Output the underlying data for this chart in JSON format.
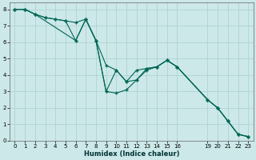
{
  "xlabel": "Humidex (Indice chaleur)",
  "bg_color": "#cce8e8",
  "grid_color": "#aacfcf",
  "line_color": "#006655",
  "xlim": [
    -0.5,
    23.5
  ],
  "ylim": [
    0,
    8.4
  ],
  "xticks": [
    0,
    1,
    2,
    3,
    4,
    5,
    6,
    7,
    8,
    9,
    10,
    11,
    12,
    13,
    14,
    15,
    16,
    19,
    20,
    21,
    22,
    23
  ],
  "yticks": [
    0,
    1,
    2,
    3,
    4,
    5,
    6,
    7,
    8
  ],
  "line1_x": [
    0,
    1,
    2,
    3,
    4,
    5,
    6,
    7,
    8,
    9,
    10,
    11,
    12,
    13,
    14,
    15,
    16,
    19,
    20,
    21,
    22,
    23
  ],
  "line1_y": [
    8,
    8,
    7.7,
    7.5,
    7.4,
    7.3,
    7.2,
    7.4,
    6.1,
    3.0,
    2.9,
    3.1,
    3.7,
    4.3,
    4.5,
    4.9,
    4.5,
    2.5,
    2.0,
    1.2,
    0.4,
    0.25
  ],
  "line2_x": [
    0,
    1,
    2,
    6,
    7,
    8,
    9,
    10,
    11,
    12,
    13,
    14,
    15,
    16,
    19,
    20,
    21,
    22,
    23
  ],
  "line2_y": [
    8,
    8,
    7.7,
    6.1,
    7.4,
    6.1,
    4.6,
    4.3,
    3.6,
    4.3,
    4.4,
    4.5,
    4.9,
    4.5,
    2.5,
    2.0,
    1.2,
    0.4,
    0.25
  ],
  "line3_x": [
    0,
    1,
    2,
    3,
    4,
    5,
    6,
    7,
    8,
    9,
    10,
    11,
    12,
    13,
    14,
    15,
    16,
    19,
    20,
    21,
    22,
    23
  ],
  "line3_y": [
    8,
    8,
    7.7,
    7.5,
    7.4,
    7.3,
    6.1,
    7.4,
    6.1,
    3.0,
    4.3,
    3.6,
    3.7,
    4.4,
    4.5,
    4.9,
    4.5,
    2.5,
    2.0,
    1.2,
    0.4,
    0.25
  ]
}
